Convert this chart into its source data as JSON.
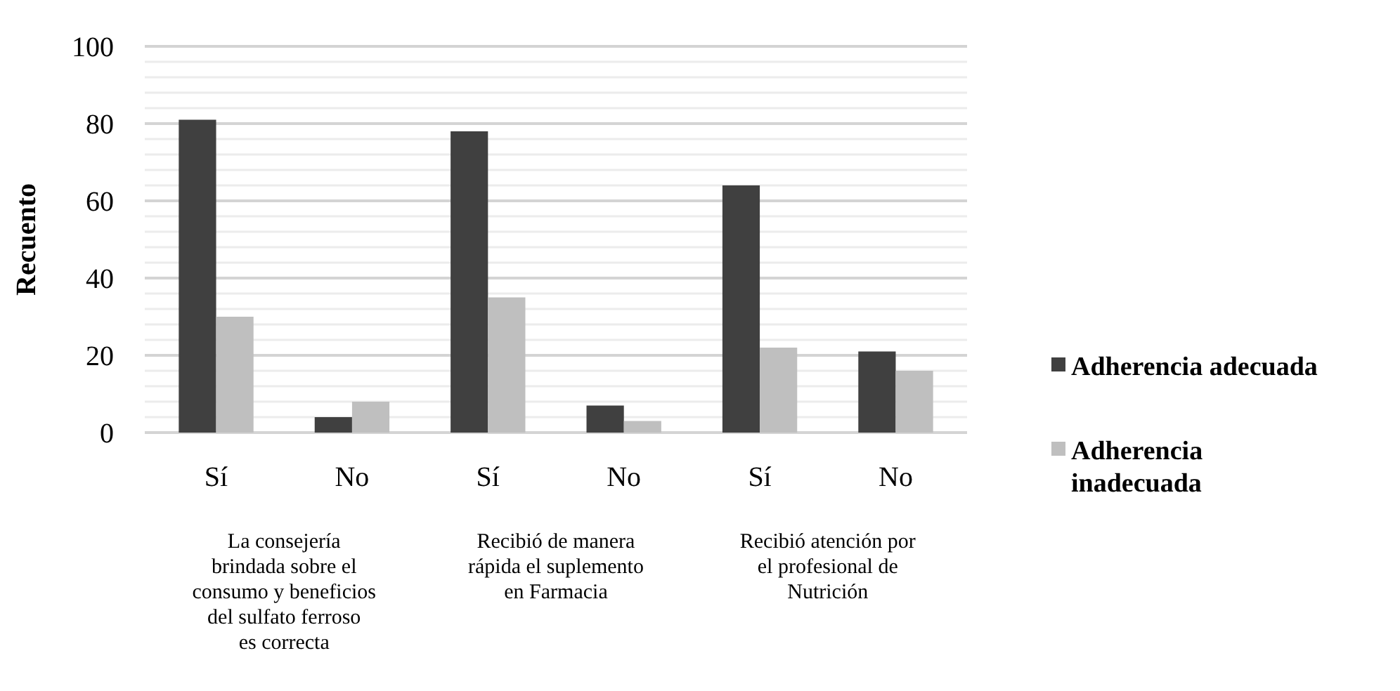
{
  "chart_data": {
    "type": "bar",
    "ylabel": "Recuento",
    "categories": [
      "Sí",
      "No",
      "Sí",
      "No",
      "Sí",
      "No"
    ],
    "series": [
      {
        "name": "Adherencia adecuada",
        "color": "#404040",
        "values": [
          81,
          4,
          78,
          7,
          64,
          21
        ]
      },
      {
        "name": "Adherencia inadecuada",
        "color": "#bfbfbf",
        "values": [
          30,
          8,
          35,
          3,
          22,
          16
        ]
      }
    ],
    "ylim": [
      0,
      100
    ],
    "yticks": [
      0,
      {
        "value": 4,
        "label": null
      },
      {
        "value": 8,
        "label": null
      },
      {
        "value": 12,
        "label": null
      },
      {
        "value": 16,
        "label": null
      },
      20,
      {
        "value": 24,
        "label": null
      },
      {
        "value": 28,
        "label": null
      },
      {
        "value": 32,
        "label": null
      },
      {
        "value": 36,
        "label": null
      },
      40,
      {
        "value": 44,
        "label": null
      },
      {
        "value": 48,
        "label": null
      },
      {
        "value": 52,
        "label": null
      },
      {
        "value": 56,
        "label": null
      },
      60,
      {
        "value": 64,
        "label": null
      },
      {
        "value": 68,
        "label": null
      },
      {
        "value": 72,
        "label": null
      },
      {
        "value": 76,
        "label": null
      },
      80,
      {
        "value": 84,
        "label": null
      },
      {
        "value": 88,
        "label": null
      },
      {
        "value": 92,
        "label": null
      },
      {
        "value": 96,
        "label": null
      },
      100
    ],
    "grid": "y",
    "legend": "right",
    "annotations": [
      "La consejería brindada sobre el consumo y beneficios del sulfato ferroso es correcta",
      "Recibió de manera rápida el suplemento en Farmacia",
      "Recibió atención por el profesional de Nutrición"
    ]
  }
}
